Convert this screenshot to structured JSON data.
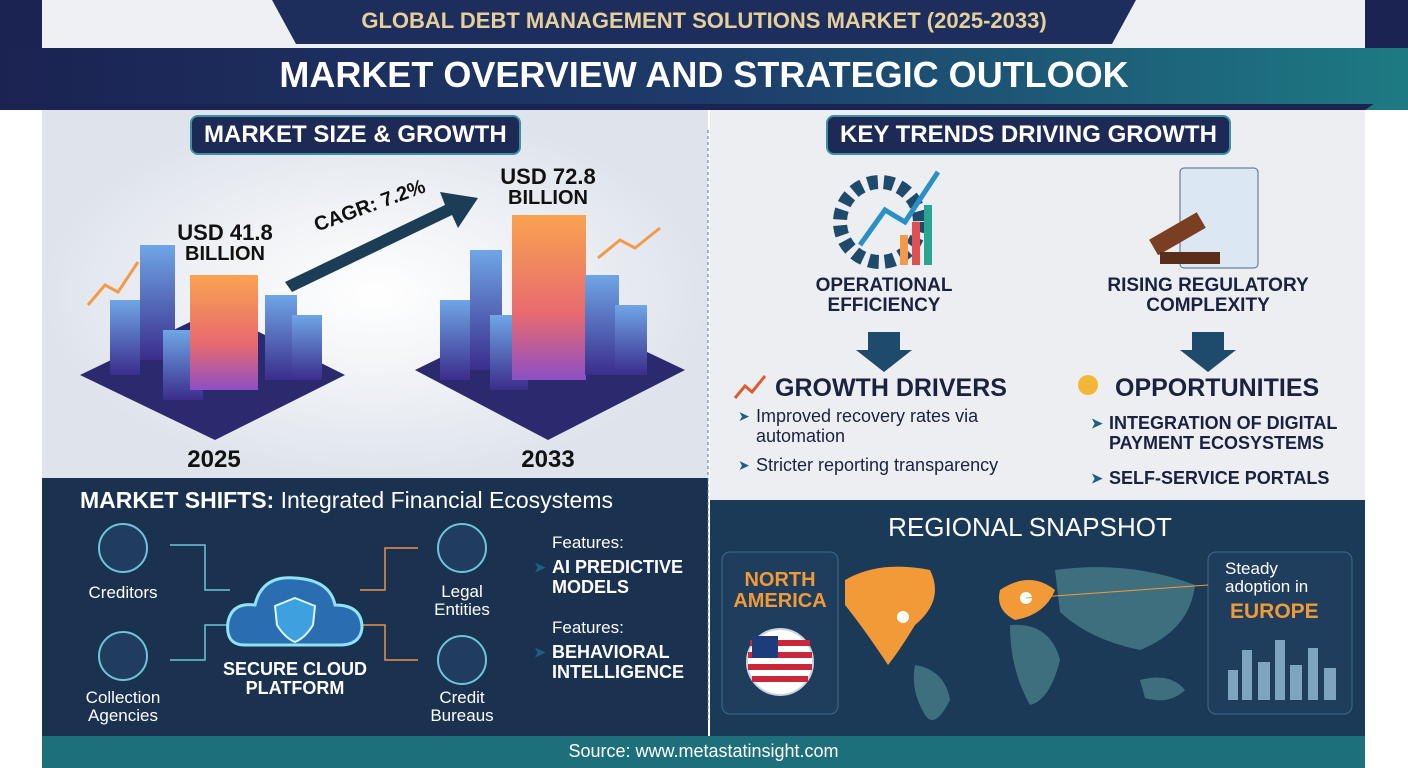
{
  "header": {
    "top_title": "GLOBAL DEBT MANAGEMENT SOLUTIONS MARKET (2025-2033)",
    "title": "MARKET OVERVIEW AND STRATEGIC OUTLOOK"
  },
  "market_size": {
    "heading": "MARKET SIZE & GROWTH",
    "start": {
      "value": "USD 41.8",
      "unit": "BILLION",
      "year": "2025"
    },
    "end": {
      "value": "USD 72.8",
      "unit": "BILLION",
      "year": "2033"
    },
    "cagr": "CAGR: 7.2%"
  },
  "trends": {
    "heading": "KEY TRENDS DRIVING GROWTH",
    "items": [
      "OPERATIONAL EFFICIENCY",
      "RISING REGULATORY COMPLEXITY"
    ]
  },
  "growth_drivers": {
    "heading": "GROWTH DRIVERS",
    "items": [
      "Improved recovery rates via automation",
      "Stricter reporting transparency"
    ]
  },
  "opportunities": {
    "heading": "OPPORTUNITIES",
    "items": [
      "INTEGRATION OF DIGITAL PAYMENT ECOSYSTEMS",
      "SELF-SERVICE PORTALS"
    ]
  },
  "market_shifts": {
    "heading": "MARKET SHIFTS:",
    "subheading": "Integrated Financial Ecosystems",
    "nodes": [
      "Creditors",
      "Collection Agencies",
      "Legal Entities",
      "Credit Bureaus"
    ],
    "center": "SECURE CLOUD PLATFORM",
    "features": [
      {
        "label": "Features:",
        "text": "AI PREDICTIVE MODELS"
      },
      {
        "label": "Features:",
        "text": "BEHAVIORAL INTELLIGENCE"
      }
    ]
  },
  "regional": {
    "heading": "REGIONAL SNAPSHOT",
    "north_america": "NORTH AMERICA",
    "europe_intro": "Steady adoption in",
    "europe": "EUROPE"
  },
  "footer": {
    "source": "Source: www.metastatinsight.com"
  }
}
